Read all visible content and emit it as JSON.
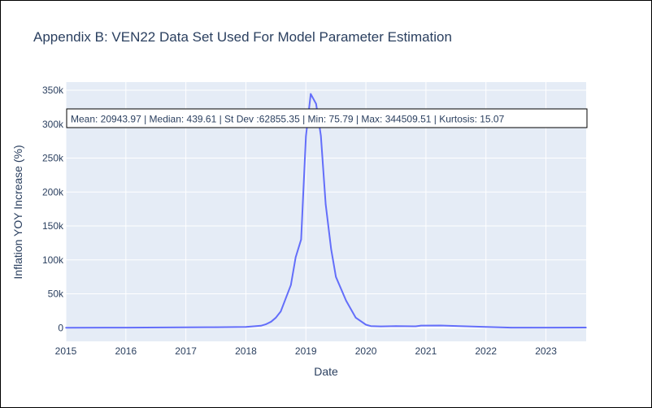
{
  "colors": {
    "plot_background": "#e5ecf6",
    "grid": "#ffffff",
    "line": "#636efa",
    "text": "#2a3f5f",
    "annotation_border": "#000000",
    "annotation_background": "#ffffff"
  },
  "chart_data": {
    "type": "line",
    "title": "Appendix B: VEN22 Data Set Used For Model Parameter Estimation",
    "xlabel": "Date",
    "ylabel": "Inflation YOY Increase (%)",
    "x_tick_labels": [
      "2015",
      "2016",
      "2017",
      "2018",
      "2019",
      "2020",
      "2021",
      "2022",
      "2023"
    ],
    "y_tick_labels": [
      "0",
      "50k",
      "100k",
      "150k",
      "200k",
      "250k",
      "300k",
      "350k"
    ],
    "x_ticks": [
      2015,
      2016,
      2017,
      2018,
      2019,
      2020,
      2021,
      2022,
      2023
    ],
    "y_ticks": [
      0,
      50000,
      100000,
      150000,
      200000,
      250000,
      300000,
      350000
    ],
    "xlim": [
      2015,
      2023.67
    ],
    "ylim": [
      -20000,
      362000
    ],
    "grid": true,
    "series": [
      {
        "values": [
          {
            "x": 2015.0,
            "y": 80
          },
          {
            "x": 2016.0,
            "y": 250
          },
          {
            "x": 2017.0,
            "y": 700
          },
          {
            "x": 2017.5,
            "y": 800
          },
          {
            "x": 2018.0,
            "y": 1200
          },
          {
            "x": 2018.17,
            "y": 2500
          },
          {
            "x": 2018.25,
            "y": 3000
          },
          {
            "x": 2018.33,
            "y": 5000
          },
          {
            "x": 2018.42,
            "y": 9000
          },
          {
            "x": 2018.5,
            "y": 15000
          },
          {
            "x": 2018.58,
            "y": 24000
          },
          {
            "x": 2018.75,
            "y": 63000
          },
          {
            "x": 2018.83,
            "y": 104000
          },
          {
            "x": 2018.92,
            "y": 130000
          },
          {
            "x": 2019.0,
            "y": 282000
          },
          {
            "x": 2019.08,
            "y": 344509.51
          },
          {
            "x": 2019.17,
            "y": 330000
          },
          {
            "x": 2019.25,
            "y": 283000
          },
          {
            "x": 2019.33,
            "y": 182000
          },
          {
            "x": 2019.42,
            "y": 116000
          },
          {
            "x": 2019.5,
            "y": 75000
          },
          {
            "x": 2019.67,
            "y": 40000
          },
          {
            "x": 2019.83,
            "y": 15000
          },
          {
            "x": 2020.0,
            "y": 4500
          },
          {
            "x": 2020.08,
            "y": 2500
          },
          {
            "x": 2020.25,
            "y": 2000
          },
          {
            "x": 2020.5,
            "y": 2500
          },
          {
            "x": 2020.83,
            "y": 2200
          },
          {
            "x": 2020.92,
            "y": 3200
          },
          {
            "x": 2021.25,
            "y": 3300
          },
          {
            "x": 2021.5,
            "y": 2600
          },
          {
            "x": 2022.0,
            "y": 1200
          },
          {
            "x": 2022.42,
            "y": 200
          },
          {
            "x": 2022.75,
            "y": 200
          },
          {
            "x": 2023.0,
            "y": 180
          },
          {
            "x": 2023.67,
            "y": 300
          }
        ]
      }
    ],
    "annotation": "Mean: 20943.97 | Median: 439.61 | St Dev :62855.35 | Min: 75.79 | Max: 344509.51 | Kurtosis: 15.07"
  }
}
